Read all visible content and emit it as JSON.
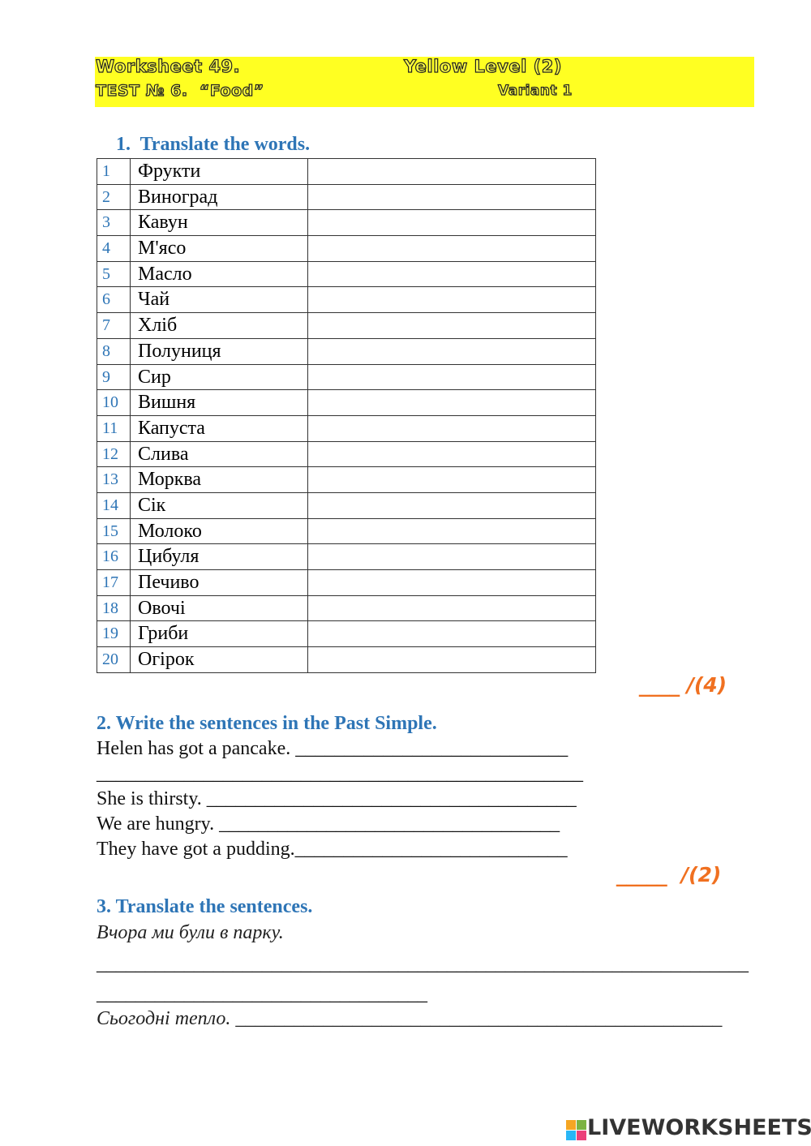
{
  "header": {
    "title": "Worksheet 49.",
    "level": "Yellow Level (2)",
    "test": "TEST № 6.  “Food”",
    "variant": "Variant 1"
  },
  "section1": {
    "heading": "1.  Translate the words.",
    "rows": [
      [
        1,
        "Фрукти"
      ],
      [
        2,
        "Виноград"
      ],
      [
        3,
        "Кавун"
      ],
      [
        4,
        "М'ясо"
      ],
      [
        5,
        "Масло"
      ],
      [
        6,
        "Чай"
      ],
      [
        7,
        "Хліб"
      ],
      [
        8,
        "Полуниця"
      ],
      [
        9,
        "Сир"
      ],
      [
        10,
        "Вишня"
      ],
      [
        11,
        "Капуста"
      ],
      [
        12,
        "Слива"
      ],
      [
        13,
        "Морква"
      ],
      [
        14,
        "Сік"
      ],
      [
        15,
        "Молоко"
      ],
      [
        16,
        "Цибуля"
      ],
      [
        17,
        "Печиво"
      ],
      [
        18,
        "Овочі"
      ],
      [
        19,
        "Гриби"
      ],
      [
        20,
        "Огірок"
      ]
    ],
    "score": "____ /(4)"
  },
  "section2": {
    "heading": "2. Write the sentences in the Past Simple.",
    "lines": [
      "Helen has got a pancake. ____________________________",
      "__________________________________________________",
      "She is thirsty. ______________________________________",
      "We are hungry. ___________________________________",
      "They have got a pudding.____________________________"
    ],
    "score": "_____  /(2)"
  },
  "section3": {
    "heading": "3. Translate the sentences.",
    "lines": [
      "Вчора ми були в парку.",
      "___________________________________________________________________",
      "__________________________________",
      "Сьогодні тепло. __________________________________________________"
    ]
  },
  "footer": {
    "logo": "LIVEWORKSHEETS"
  }
}
